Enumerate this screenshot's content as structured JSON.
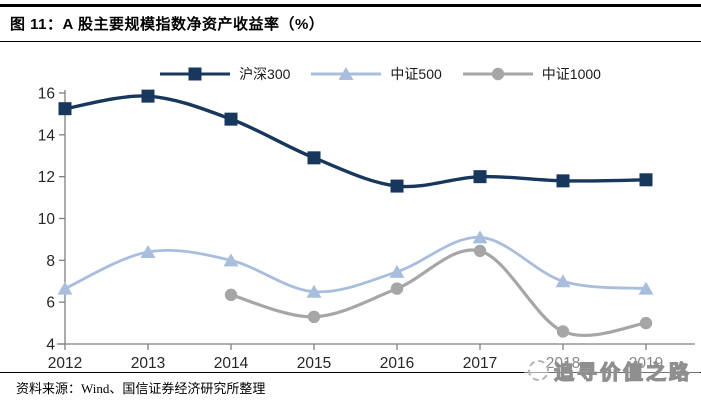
{
  "figure": {
    "title": "图 11：A 股主要规模指数净资产收益率（%）",
    "source": "资料来源：Wind、国信证券经济研究所整理"
  },
  "watermark": {
    "text": "追寻价值之路"
  },
  "chart_data": {
    "type": "line",
    "title": "A 股主要规模指数净资产收益率（%）",
    "categories": [
      "2012",
      "2013",
      "2014",
      "2015",
      "2016",
      "2017",
      "2018",
      "2019"
    ],
    "series": [
      {
        "name": "沪深300",
        "marker": "square",
        "color": "#17375D",
        "line_width": 3.4,
        "values": [
          15.25,
          15.85,
          14.75,
          12.9,
          11.55,
          12.0,
          11.8,
          11.85
        ]
      },
      {
        "name": "中证500",
        "marker": "triangle",
        "color": "#A9BEDC",
        "line_width": 2.8,
        "values": [
          6.65,
          8.4,
          8.0,
          6.5,
          7.45,
          9.1,
          7.0,
          6.65
        ]
      },
      {
        "name": "中证1000",
        "marker": "circle",
        "color": "#A6A6A6",
        "line_width": 3.2,
        "values": [
          null,
          null,
          6.35,
          5.3,
          6.65,
          8.45,
          4.6,
          5.0
        ]
      }
    ],
    "ylim": [
      4,
      16
    ],
    "yticks": [
      4,
      6,
      8,
      10,
      12,
      14,
      16
    ],
    "legend_position": "top",
    "grid": false,
    "smooth": true,
    "axis_color": "#808080",
    "tick_label_color": "#262626"
  }
}
